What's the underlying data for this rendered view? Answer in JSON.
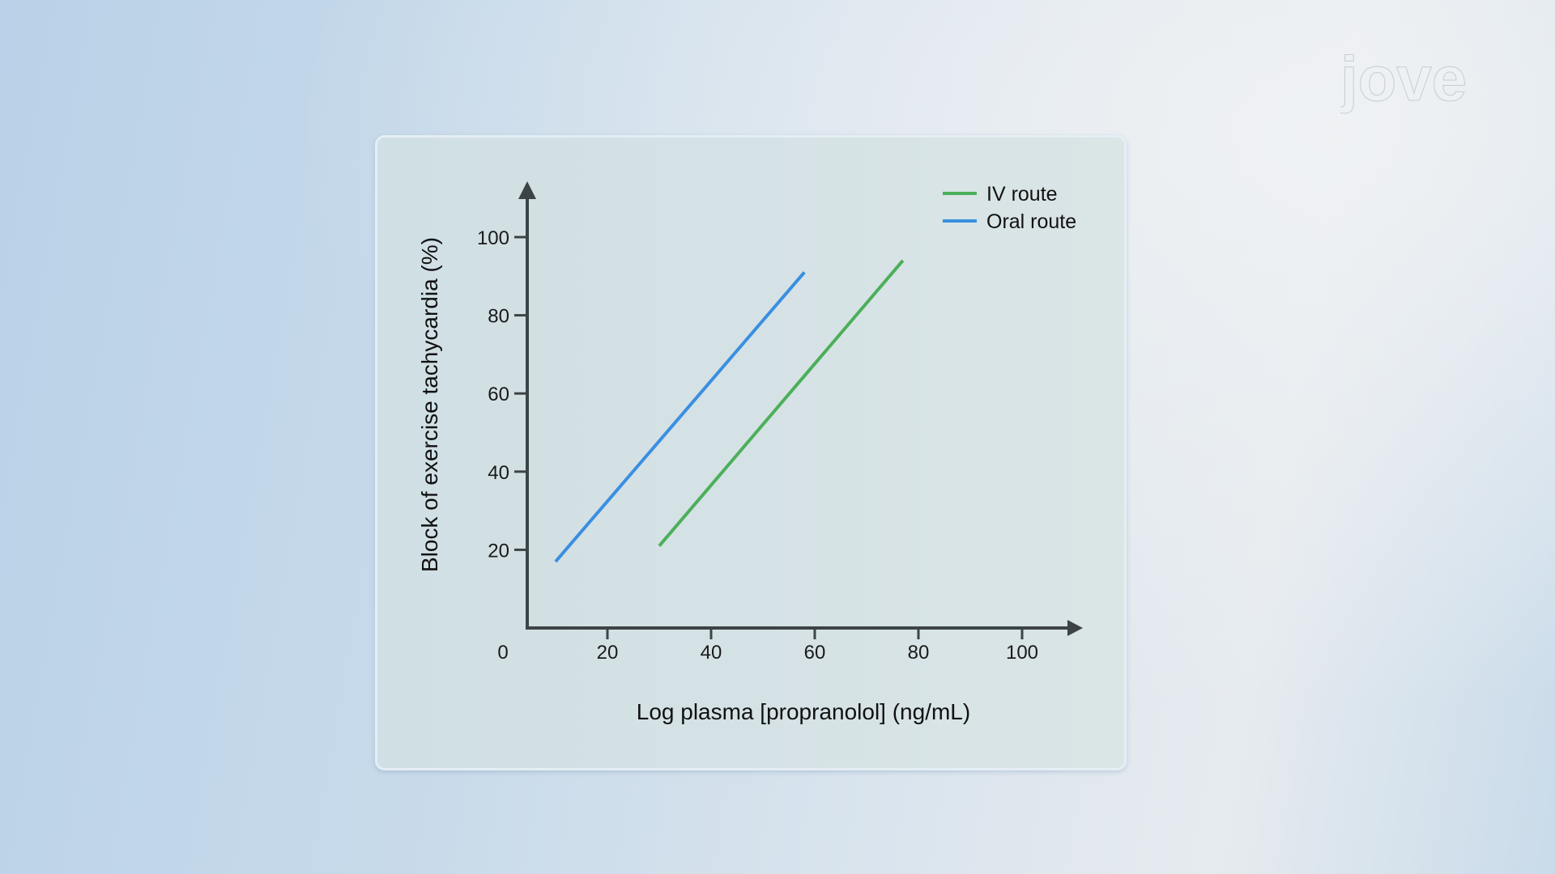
{
  "brand": {
    "logo_text": "jove"
  },
  "chart_data": {
    "type": "line",
    "title": "",
    "xlabel": "Log plasma [propranolol] (ng/mL)",
    "ylabel": "Block of exercise tachycardia (%)",
    "xlim": [
      0,
      110
    ],
    "ylim": [
      0,
      115
    ],
    "x_ticks": [
      "0",
      "20",
      "40",
      "60",
      "80",
      "100"
    ],
    "y_ticks": [
      "20",
      "40",
      "60",
      "80",
      "100"
    ],
    "grid": false,
    "legend_position": "top-right",
    "series": [
      {
        "name": "IV route",
        "color": "#4caf5a",
        "x": [
          30,
          77
        ],
        "y": [
          21,
          94
        ]
      },
      {
        "name": "Oral route",
        "color": "#3a8fe0",
        "x": [
          10,
          58
        ],
        "y": [
          17,
          91
        ]
      }
    ]
  }
}
